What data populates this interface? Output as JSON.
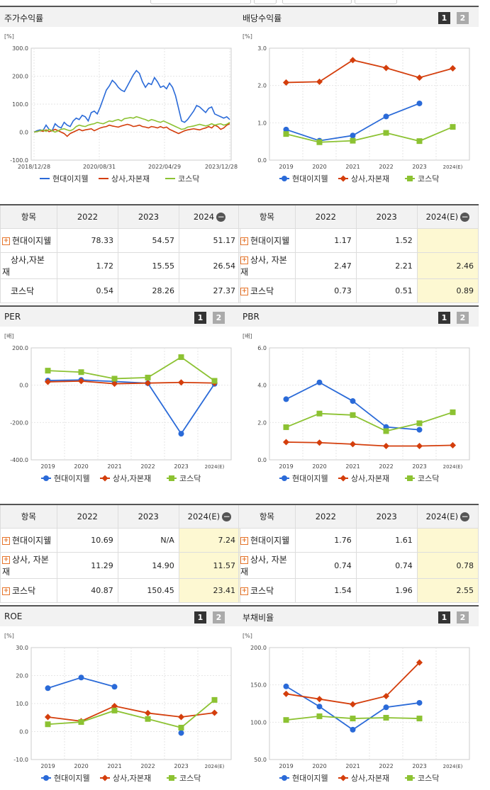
{
  "legend": [
    "현대이지웰",
    "상사,자본재",
    "코스닥"
  ],
  "colors": [
    "#2a6ad8",
    "#d43e0c",
    "#8cc232"
  ],
  "toggle": [
    "1",
    "2"
  ],
  "charts": {
    "stock": {
      "title": "주가수익률",
      "chart_data": {
        "type": "line",
        "unit": "[%]",
        "y_ticks": [
          "300.0",
          "200.0",
          "100.0",
          "0.0",
          "-100.0"
        ],
        "ylim": [
          -100,
          300
        ],
        "x_ticks": [
          "2018/12/28",
          "2020/08/31",
          "2022/04/29",
          "2023/12/28"
        ],
        "series": [
          {
            "name": "현대이지웰",
            "values": [
              0,
              5,
              8,
              6,
              25,
              10,
              5,
              30,
              20,
              15,
              35,
              25,
              20,
              40,
              50,
              45,
              60,
              55,
              40,
              70,
              75,
              65,
              90,
              120,
              150,
              165,
              185,
              175,
              160,
              150,
              145,
              165,
              185,
              205,
              220,
              210,
              180,
              160,
              175,
              170,
              195,
              180,
              160,
              165,
              155,
              175,
              160,
              130,
              85,
              40,
              35,
              45,
              60,
              75,
              95,
              90,
              80,
              70,
              85,
              90,
              65,
              60,
              55,
              50,
              55,
              45
            ]
          },
          {
            "name": "상사,자본재",
            "values": [
              0,
              2,
              5,
              3,
              8,
              2,
              5,
              10,
              5,
              0,
              -5,
              -15,
              -5,
              0,
              5,
              10,
              5,
              8,
              10,
              12,
              5,
              10,
              15,
              18,
              20,
              25,
              22,
              20,
              18,
              22,
              25,
              28,
              25,
              20,
              22,
              25,
              20,
              18,
              15,
              20,
              18,
              15,
              20,
              15,
              18,
              10,
              5,
              0,
              -5,
              0,
              5,
              8,
              10,
              12,
              10,
              8,
              12,
              15,
              20,
              15,
              25,
              20,
              10,
              15,
              25,
              30
            ]
          },
          {
            "name": "코스닥",
            "values": [
              0,
              2,
              5,
              8,
              3,
              10,
              5,
              0,
              5,
              10,
              12,
              8,
              5,
              10,
              20,
              25,
              22,
              20,
              25,
              28,
              30,
              35,
              32,
              30,
              35,
              40,
              38,
              42,
              45,
              40,
              48,
              50,
              52,
              50,
              55,
              52,
              48,
              45,
              40,
              45,
              42,
              38,
              35,
              40,
              35,
              30,
              25,
              20,
              15,
              10,
              12,
              18,
              20,
              22,
              25,
              28,
              25,
              22,
              25,
              30,
              25,
              28,
              30,
              25,
              28,
              35
            ]
          }
        ]
      }
    },
    "dividend": {
      "title": "배당수익률",
      "chart_data": {
        "type": "line",
        "unit": "[%]",
        "y_ticks": [
          "3.0",
          "2.0",
          "1.0",
          "0.0"
        ],
        "ylim": [
          0,
          3
        ],
        "categories": [
          "2019",
          "2020",
          "2021",
          "2022",
          "2023",
          "2024(E)"
        ],
        "series": [
          {
            "name": "현대이지웰",
            "values": [
              0.82,
              0.52,
              0.66,
              1.17,
              1.52,
              null
            ]
          },
          {
            "name": "상사,자본재",
            "values": [
              2.08,
              2.1,
              2.68,
              2.47,
              2.21,
              2.46
            ]
          },
          {
            "name": "코스닥",
            "values": [
              0.7,
              0.48,
              0.52,
              0.73,
              0.51,
              0.89
            ]
          }
        ]
      }
    },
    "per": {
      "title": "PER",
      "chart_data": {
        "type": "line",
        "unit": "[배]",
        "y_ticks": [
          "200.0",
          "0.0",
          "-200.0",
          "-400.0"
        ],
        "ylim": [
          -400,
          200
        ],
        "categories": [
          "2019",
          "2020",
          "2021",
          "2022",
          "2023",
          "2024(E)"
        ],
        "series": [
          {
            "name": "현대이지웰",
            "values": [
              25,
              28,
              20,
              10.69,
              -260,
              7.24
            ]
          },
          {
            "name": "상사,자본재",
            "values": [
              18,
              22,
              8,
              11.29,
              14.9,
              11.57
            ]
          },
          {
            "name": "코스닥",
            "values": [
              78,
              70,
              35,
              40.87,
              150.45,
              23.41
            ]
          }
        ]
      }
    },
    "pbr": {
      "title": "PBR",
      "chart_data": {
        "type": "line",
        "unit": "[배]",
        "y_ticks": [
          "6.0",
          "4.0",
          "2.0",
          "0.0"
        ],
        "ylim": [
          0,
          6
        ],
        "categories": [
          "2019",
          "2020",
          "2021",
          "2022",
          "2023",
          "2024(E)"
        ],
        "series": [
          {
            "name": "현대이지웰",
            "values": [
              3.25,
              4.15,
              3.15,
              1.76,
              1.61,
              null
            ]
          },
          {
            "name": "상사,자본재",
            "values": [
              0.95,
              0.92,
              0.84,
              0.74,
              0.74,
              0.78
            ]
          },
          {
            "name": "코스닥",
            "values": [
              1.75,
              2.48,
              2.4,
              1.54,
              1.96,
              2.55
            ]
          }
        ]
      }
    },
    "roe": {
      "title": "ROE",
      "chart_data": {
        "type": "line",
        "unit": "[%]",
        "y_ticks": [
          "30.0",
          "20.0",
          "10.0",
          "0.0",
          "-10.0"
        ],
        "ylim": [
          -10,
          30
        ],
        "categories": [
          "2019",
          "2020",
          "2021",
          "2022",
          "2023",
          "2024(E)"
        ],
        "series": [
          {
            "name": "현대이지웰",
            "values": [
              15.5,
              19.3,
              16.0,
              null,
              -0.5,
              null
            ]
          },
          {
            "name": "상사,자본재",
            "values": [
              5.2,
              3.7,
              9.1,
              6.6,
              5.2,
              6.7
            ]
          },
          {
            "name": "코스닥",
            "values": [
              2.6,
              3.4,
              7.5,
              4.5,
              1.4,
              11.3
            ]
          }
        ]
      }
    },
    "debt": {
      "title": "부채비율",
      "chart_data": {
        "type": "line",
        "unit": "[%]",
        "y_ticks": [
          "200.0",
          "150.0",
          "100.0",
          "50.0"
        ],
        "ylim": [
          50,
          200
        ],
        "categories": [
          "2019",
          "2020",
          "2021",
          "2022",
          "2023",
          "2024(E)"
        ],
        "series": [
          {
            "name": "현대이지웰",
            "values": [
              148,
              121,
              90,
              120,
              126,
              null
            ]
          },
          {
            "name": "상사,자본재",
            "values": [
              138,
              131,
              124,
              135,
              180,
              null
            ]
          },
          {
            "name": "코스닥",
            "values": [
              103,
              108,
              105,
              106,
              105,
              null
            ]
          }
        ]
      }
    }
  },
  "tables": {
    "stock": {
      "headers": [
        "항목",
        "2022",
        "2023",
        "2024"
      ],
      "rows": [
        {
          "name": "현대이지웰",
          "plus": true,
          "v": [
            "78.33",
            "54.57",
            "51.17"
          ]
        },
        {
          "name": "상사,자본재",
          "plus": false,
          "v": [
            "1.72",
            "15.55",
            "26.54"
          ]
        },
        {
          "name": "코스닥",
          "plus": false,
          "v": [
            "0.54",
            "28.26",
            "27.37"
          ]
        }
      ]
    },
    "dividend": {
      "headers": [
        "항목",
        "2022",
        "2023",
        "2024(E)"
      ],
      "rows": [
        {
          "name": "현대이지웰",
          "plus": true,
          "v": [
            "1.17",
            "1.52",
            ""
          ]
        },
        {
          "name": "상사, 자본재",
          "plus": true,
          "v": [
            "2.47",
            "2.21",
            "2.46"
          ]
        },
        {
          "name": "코스닥",
          "plus": true,
          "v": [
            "0.73",
            "0.51",
            "0.89"
          ]
        }
      ]
    },
    "per": {
      "headers": [
        "항목",
        "2022",
        "2023",
        "2024(E)"
      ],
      "rows": [
        {
          "name": "현대이지웰",
          "plus": true,
          "v": [
            "10.69",
            "N/A",
            "7.24"
          ]
        },
        {
          "name": "상사, 자본재",
          "plus": true,
          "v": [
            "11.29",
            "14.90",
            "11.57"
          ]
        },
        {
          "name": "코스닥",
          "plus": true,
          "v": [
            "40.87",
            "150.45",
            "23.41"
          ]
        }
      ]
    },
    "pbr": {
      "headers": [
        "항목",
        "2022",
        "2023",
        "2024(E)"
      ],
      "rows": [
        {
          "name": "현대이지웰",
          "plus": true,
          "v": [
            "1.76",
            "1.61",
            ""
          ]
        },
        {
          "name": "상사, 자본재",
          "plus": true,
          "v": [
            "0.74",
            "0.74",
            "0.78"
          ]
        },
        {
          "name": "코스닥",
          "plus": true,
          "v": [
            "1.54",
            "1.96",
            "2.55"
          ]
        }
      ]
    }
  }
}
